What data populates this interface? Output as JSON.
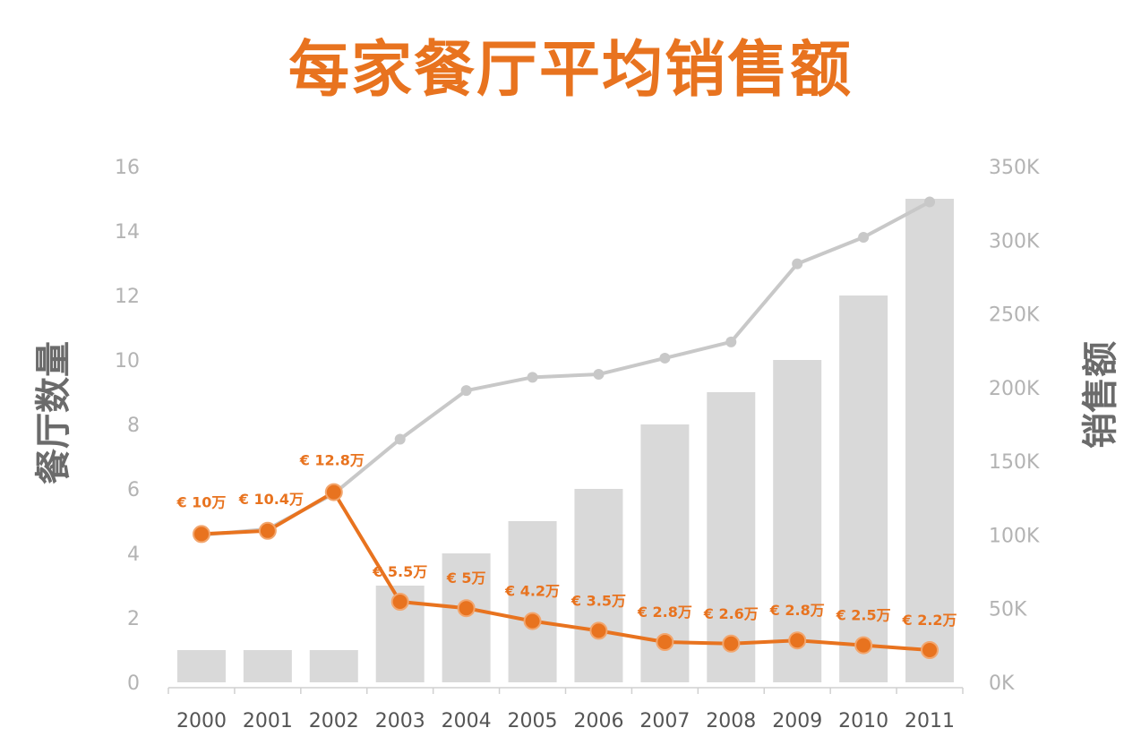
{
  "chart_data": {
    "type": "bar",
    "title": "每家餐厅平均销售额",
    "ylabel": "餐厅数量",
    "y2label": "销售额",
    "categories": [
      "2000",
      "2001",
      "2002",
      "2003",
      "2004",
      "2005",
      "2006",
      "2007",
      "2008",
      "2009",
      "2010",
      "2011"
    ],
    "ylim": [
      0,
      16
    ],
    "y_ticks": [
      "0",
      "2",
      "4",
      "6",
      "8",
      "10",
      "12",
      "14",
      "16"
    ],
    "y2lim": [
      0,
      350000
    ],
    "y2_ticks": [
      "0K",
      "50K",
      "100K",
      "150K",
      "200K",
      "250K",
      "300K",
      "350K"
    ],
    "series": [
      {
        "kind": "bar",
        "axis": "left",
        "color": "#d9d9d9",
        "values": [
          1,
          1,
          1,
          3,
          4,
          5,
          6,
          8,
          9,
          10,
          12,
          15
        ]
      },
      {
        "kind": "line",
        "axis": "right",
        "color": "#c8c8c8",
        "values": [
          100000,
          104000,
          128000,
          165000,
          198000,
          207000,
          209000,
          220000,
          231000,
          284000,
          302000,
          326000
        ]
      },
      {
        "kind": "line",
        "axis": "left",
        "color": "#e8731f",
        "values": [
          4.6,
          4.7,
          5.9,
          2.5,
          2.3,
          1.9,
          1.6,
          1.25,
          1.2,
          1.3,
          1.15,
          1.0
        ],
        "labels": [
          "€ 10万",
          "€ 10.4万",
          "€ 12.8万",
          "€ 5.5万",
          "€ 5万",
          "€ 4.2万",
          "€ 3.5万",
          "€ 2.8万",
          "€ 2.6万",
          "€ 2.8万",
          "€ 2.5万",
          "€ 2.2万"
        ]
      }
    ],
    "grid": false,
    "legend": "none"
  }
}
